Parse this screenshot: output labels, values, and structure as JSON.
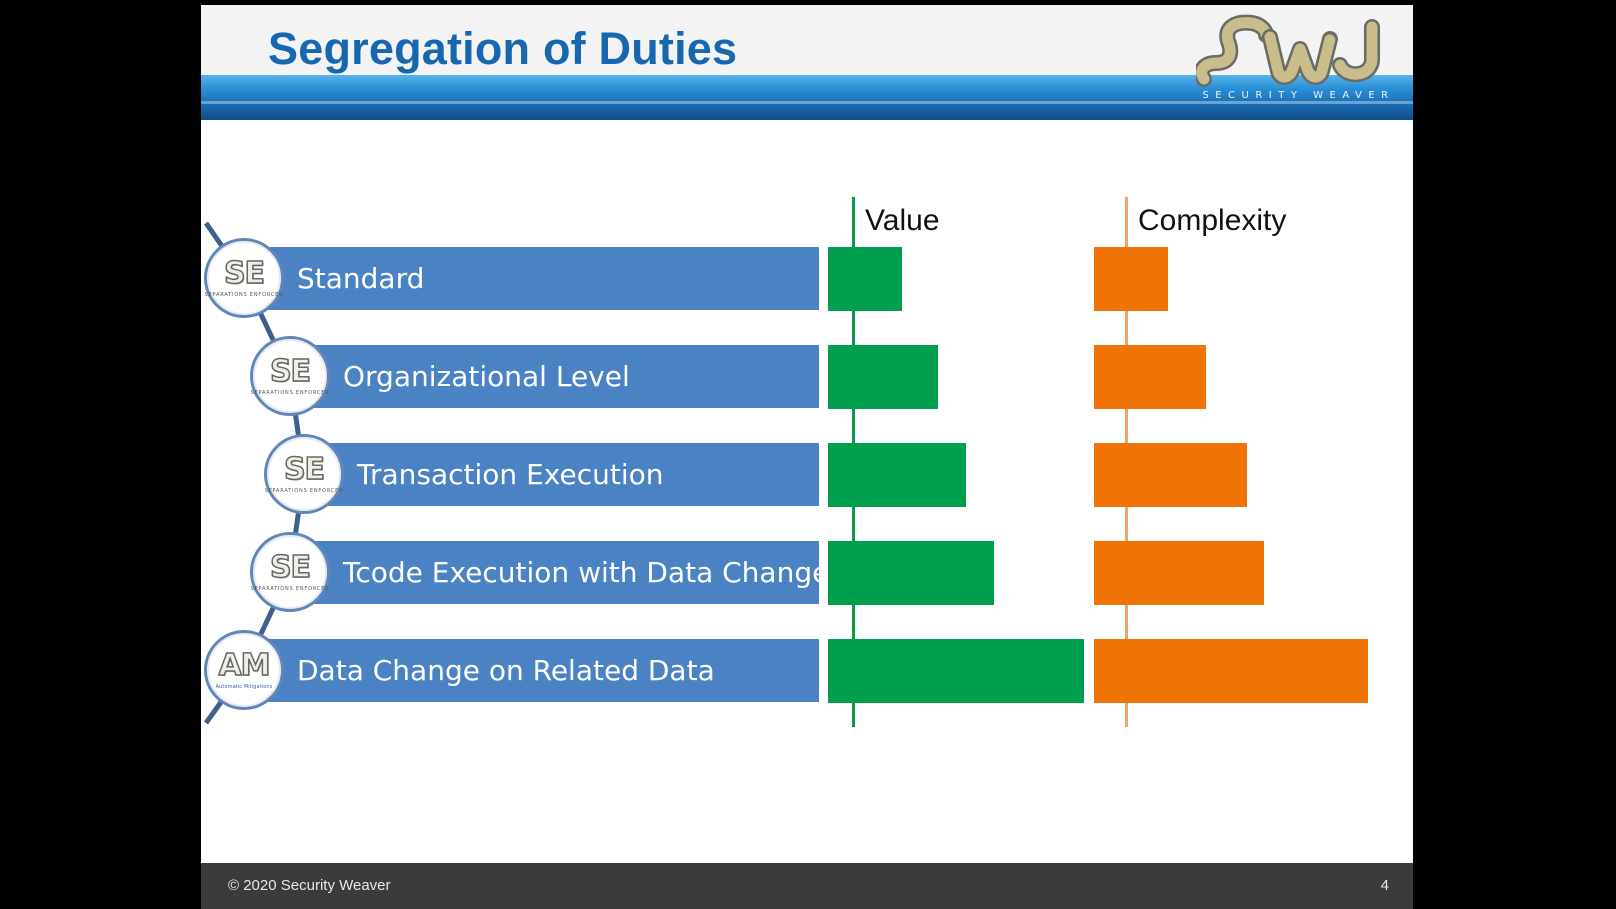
{
  "slide": {
    "title": "Segregation of Duties",
    "logo": {
      "name": "security-weaver-logo",
      "wordmark": "SECURITY WEAVER",
      "mark_color": "#c9bd8c",
      "outline_color": "#6a6a66"
    },
    "footer": {
      "copyright": "© 2020 Security Weaver",
      "page_number": "4"
    }
  },
  "chart_data": {
    "type": "bar",
    "orientation": "horizontal",
    "categories": [
      "Standard",
      "Organizational Level",
      "Transaction Execution",
      "Tcode Execution with Data Change",
      "Data Change on Related Data"
    ],
    "series": [
      {
        "name": "Value",
        "color": "#009f4d",
        "values": [
          0.29,
          0.43,
          0.54,
          0.65,
          1.0
        ]
      },
      {
        "name": "Complexity",
        "color": "#ef7307",
        "values": [
          0.27,
          0.41,
          0.56,
          0.62,
          1.0
        ]
      }
    ],
    "legend": "column-headers",
    "grid": false,
    "bar_color": "#4b82c4",
    "badges": [
      {
        "code": "SE",
        "subtitle": "SEPARATIONS ENFORCER",
        "icon": "se-badge-icon"
      },
      {
        "code": "SE",
        "subtitle": "SEPARATIONS ENFORCER",
        "icon": "se-badge-icon"
      },
      {
        "code": "SE",
        "subtitle": "SEPARATIONS ENFORCER",
        "icon": "se-badge-icon"
      },
      {
        "code": "SE",
        "subtitle": "SEPARATIONS ENFORCER",
        "icon": "se-badge-icon"
      },
      {
        "code": "AM",
        "subtitle": "Automatic Mitigations",
        "icon": "am-badge-icon"
      }
    ]
  }
}
